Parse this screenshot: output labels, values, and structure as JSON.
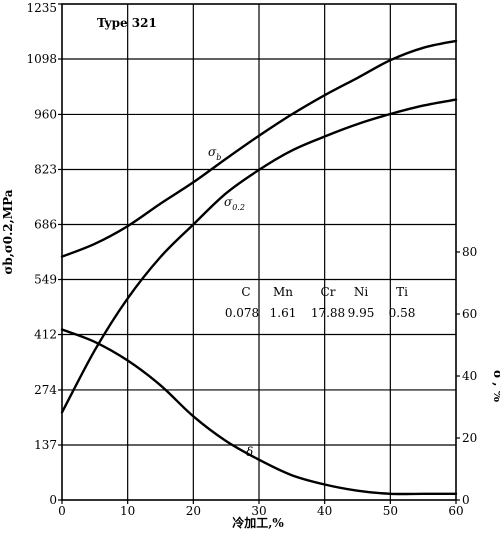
{
  "chart_data": {
    "type": "line",
    "title": "Type 321",
    "xlabel": "冷加工,%",
    "ylabel_left": "σb,σ0.2,MPa",
    "ylabel_right": "δ , %",
    "xlim": [
      0,
      60
    ],
    "ylim_left": [
      0,
      1235
    ],
    "ylim_right": [
      0,
      160
    ],
    "grid": true,
    "x_ticks": [
      0,
      10,
      20,
      30,
      40,
      50,
      60
    ],
    "y_ticks_left": [
      0,
      137,
      274,
      412,
      549,
      686,
      823,
      960,
      1098,
      1235
    ],
    "y_ticks_right": [
      0,
      20,
      40,
      60,
      80
    ],
    "series": [
      {
        "name": "σb",
        "axis": "left",
        "x": [
          0,
          5,
          10,
          15,
          20,
          25,
          30,
          35,
          40,
          45,
          50,
          55,
          60
        ],
        "y": [
          606,
          638,
          682,
          738,
          791,
          850,
          907,
          960,
          1008,
          1051,
          1095,
          1126,
          1143
        ]
      },
      {
        "name": "σ0.2",
        "axis": "left",
        "x": [
          0,
          5,
          10,
          15,
          20,
          25,
          30,
          35,
          40,
          45,
          50,
          55,
          60
        ],
        "y": [
          218,
          373,
          502,
          605,
          686,
          764,
          822,
          870,
          905,
          936,
          961,
          982,
          997
        ]
      },
      {
        "name": "δ",
        "axis": "right",
        "x": [
          0,
          5,
          10,
          15,
          20,
          25,
          30,
          35,
          40,
          45,
          50,
          55,
          60
        ],
        "y": [
          55,
          51,
          45,
          37,
          27,
          19,
          13,
          8,
          5,
          3,
          2,
          2,
          2
        ]
      }
    ],
    "composition": {
      "elements": [
        "C",
        "Mn",
        "Cr",
        "Ni",
        "Ti"
      ],
      "values": [
        "0.078",
        "1.61",
        "17.88",
        "9.95",
        "0.58"
      ]
    }
  }
}
